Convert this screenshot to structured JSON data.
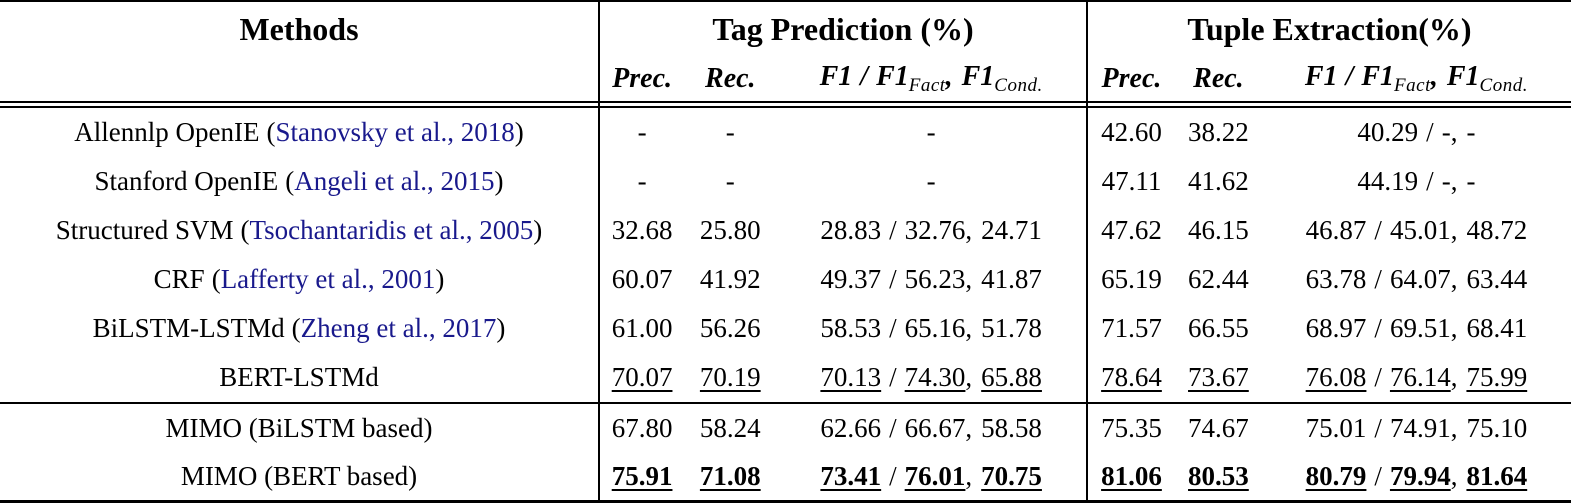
{
  "colors": {
    "citation_link": "#19198C",
    "text": "#000000",
    "rules": "#000000"
  },
  "headers": {
    "methods": "Methods",
    "tag": "Tag Prediction (%)",
    "tuple": "Tuple Extraction(%)"
  },
  "subheader": {
    "prec": "Prec.",
    "rec": "Rec.",
    "f1": "F1",
    "fact": "Fact",
    "cond": "Cond."
  },
  "punct": {
    "slash": "/",
    "comma": ",",
    "open": "(",
    "close": ")"
  },
  "rows": [
    {
      "method": "Allennlp OpenIE",
      "citation": "Stanovsky et al., 2018",
      "tag": {
        "prec": "-",
        "rec": "-",
        "f1": "-"
      },
      "tuple": {
        "prec": "42.60",
        "rec": "38.22",
        "f1": "40.29",
        "f1_fact": "-",
        "f1_cond": "-"
      }
    },
    {
      "method": "Stanford OpenIE",
      "citation": "Angeli et al., 2015",
      "tag": {
        "prec": "-",
        "rec": "-",
        "f1": "-"
      },
      "tuple": {
        "prec": "47.11",
        "rec": "41.62",
        "f1": "44.19",
        "f1_fact": "-",
        "f1_cond": "-"
      }
    },
    {
      "method": "Structured SVM",
      "citation": "Tsochantaridis et al., 2005",
      "tag": {
        "prec": "32.68",
        "rec": "25.80",
        "f1": "28.83",
        "f1_fact": "32.76",
        "f1_cond": "24.71"
      },
      "tuple": {
        "prec": "47.62",
        "rec": "46.15",
        "f1": "46.87",
        "f1_fact": "45.01",
        "f1_cond": "48.72"
      }
    },
    {
      "method": "CRF",
      "citation": "Lafferty et al., 2001",
      "tag": {
        "prec": "60.07",
        "rec": "41.92",
        "f1": "49.37",
        "f1_fact": "56.23",
        "f1_cond": "41.87"
      },
      "tuple": {
        "prec": "65.19",
        "rec": "62.44",
        "f1": "63.78",
        "f1_fact": "64.07",
        "f1_cond": "63.44"
      }
    },
    {
      "method": "BiLSTM-LSTMd",
      "citation": "Zheng et al., 2017",
      "tag": {
        "prec": "61.00",
        "rec": "56.26",
        "f1": "58.53",
        "f1_fact": "65.16",
        "f1_cond": "51.78"
      },
      "tuple": {
        "prec": "71.57",
        "rec": "66.55",
        "f1": "68.97",
        "f1_fact": "69.51",
        "f1_cond": "68.41"
      }
    },
    {
      "method": "BERT-LSTMd",
      "emphasis": "underline",
      "tag": {
        "prec": "70.07",
        "rec": "70.19",
        "f1": "70.13",
        "f1_fact": "74.30",
        "f1_cond": "65.88"
      },
      "tuple": {
        "prec": "78.64",
        "rec": "73.67",
        "f1": "76.08",
        "f1_fact": "76.14",
        "f1_cond": "75.99"
      }
    },
    {
      "method": "MIMO (BiLSTM based)",
      "tag": {
        "prec": "67.80",
        "rec": "58.24",
        "f1": "62.66",
        "f1_fact": "66.67",
        "f1_cond": "58.58"
      },
      "tuple": {
        "prec": "75.35",
        "rec": "74.67",
        "f1": "75.01",
        "f1_fact": "74.91",
        "f1_cond": "75.10"
      }
    },
    {
      "method": "MIMO (BERT based)",
      "emphasis": "bold-underline",
      "tag": {
        "prec": "75.91",
        "rec": "71.08",
        "f1": "73.41",
        "f1_fact": "76.01",
        "f1_cond": "70.75"
      },
      "tuple": {
        "prec": "81.06",
        "rec": "80.53",
        "f1": "80.79",
        "f1_fact": "79.94",
        "f1_cond": "81.64"
      }
    }
  ]
}
